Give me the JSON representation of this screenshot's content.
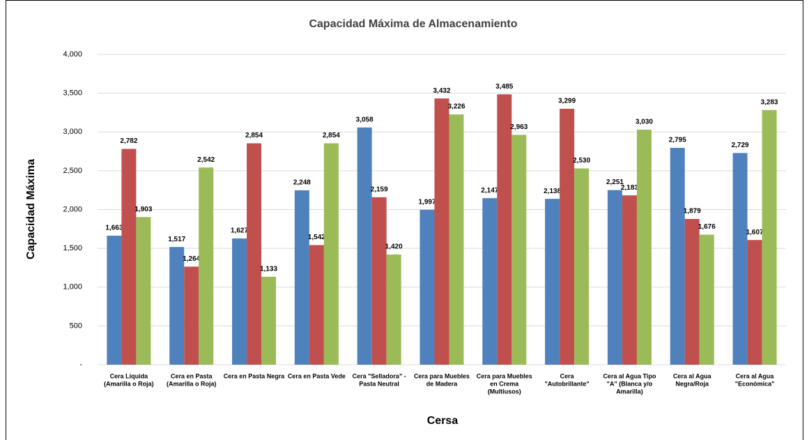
{
  "chart_data": {
    "type": "bar",
    "title": "Capacidad Máxima de Almacenamiento",
    "x_label": "Cersa",
    "y_label": "Capacidad Máxima",
    "categories": [
      [
        "Cera Liquida",
        "(Amarilla o Roja)"
      ],
      [
        "Cera en Pasta",
        "(Amarilla o Roja)"
      ],
      [
        "Cera en Pasta Negra"
      ],
      [
        "Cera en Pasta Vede"
      ],
      [
        "Cera \"Selladora\" -",
        "Pasta Neutral"
      ],
      [
        "Cera para Muebles",
        "de Madera"
      ],
      [
        "Cera para Muebles",
        "en Crema",
        "(Multiusos)"
      ],
      [
        "Cera",
        "\"Autobrillante\""
      ],
      [
        "Cera al Agua Tipo",
        "\"A\" (Blanca y/o",
        "Amarilla)"
      ],
      [
        "Cera al Agua",
        "Negra/Roja"
      ],
      [
        "Cera al Agua",
        "\"Económica\""
      ]
    ],
    "series": [
      {
        "color": "#4f81bd",
        "values": [
          1663,
          1517,
          1627,
          2248,
          3058,
          1997,
          2147,
          2138,
          2251,
          2795,
          2729
        ],
        "value_labels": [
          "1,663",
          "1,517",
          "1,627",
          "2,248",
          "3,058",
          "1,997",
          "2,147",
          "2,138",
          "2,251",
          "2,795",
          "2,729"
        ]
      },
      {
        "color": "#c0504d",
        "values": [
          2782,
          1264,
          2854,
          1542,
          2159,
          3432,
          3485,
          3299,
          2183,
          1879,
          1607
        ],
        "value_labels": [
          "2,782",
          "1,264",
          "2,854",
          "1,542",
          "2,159",
          "3,432",
          "3,485",
          "3,299",
          "2,183",
          "1,879",
          "1,607"
        ]
      },
      {
        "color": "#9bbb59",
        "values": [
          1903,
          2542,
          1133,
          2854,
          1420,
          3226,
          2963,
          2530,
          3030,
          1676,
          3283
        ],
        "value_labels": [
          "1,903",
          "2,542",
          "1,133",
          "2,854",
          "1,420",
          "3,226",
          "2,963",
          "2,530",
          "3,030",
          "1,676",
          "3,283"
        ]
      }
    ],
    "ylim": [
      0,
      4000
    ],
    "yticks": [
      {
        "value": 0,
        "label": "-"
      },
      500,
      {
        "value": 1000,
        "label": "1,000"
      },
      {
        "value": 1500,
        "label": "1,500"
      },
      {
        "value": 2000,
        "label": "2,000"
      },
      {
        "value": 2500,
        "label": "2,500"
      },
      {
        "value": 3000,
        "label": "3,000"
      },
      {
        "value": 3500,
        "label": "3,500"
      },
      {
        "value": 4000,
        "label": "4,000"
      }
    ],
    "grid": true
  }
}
